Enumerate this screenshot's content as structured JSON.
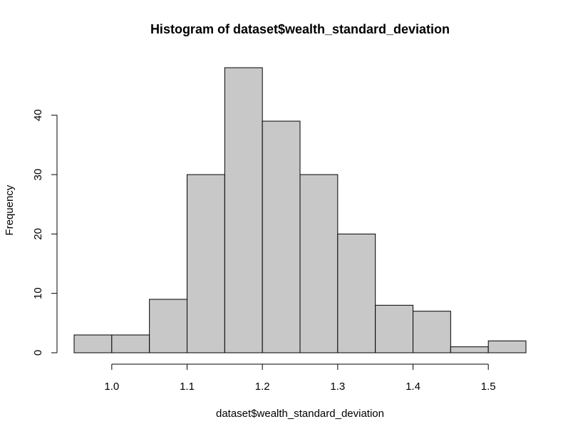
{
  "chart_data": {
    "type": "bar",
    "title": "Histogram of dataset$wealth_standard_deviation",
    "xlabel": "dataset$wealth_standard_deviation",
    "ylabel": "Frequency",
    "bins": [
      {
        "x0": 0.95,
        "x1": 1.0,
        "count": 3
      },
      {
        "x0": 1.0,
        "x1": 1.05,
        "count": 3
      },
      {
        "x0": 1.05,
        "x1": 1.1,
        "count": 9
      },
      {
        "x0": 1.1,
        "x1": 1.15,
        "count": 30
      },
      {
        "x0": 1.15,
        "x1": 1.2,
        "count": 48
      },
      {
        "x0": 1.2,
        "x1": 1.25,
        "count": 39
      },
      {
        "x0": 1.25,
        "x1": 1.3,
        "count": 30
      },
      {
        "x0": 1.3,
        "x1": 1.35,
        "count": 20
      },
      {
        "x0": 1.35,
        "x1": 1.4,
        "count": 8
      },
      {
        "x0": 1.4,
        "x1": 1.45,
        "count": 7
      },
      {
        "x0": 1.45,
        "x1": 1.5,
        "count": 1
      },
      {
        "x0": 1.5,
        "x1": 1.55,
        "count": 2
      }
    ],
    "xticks": [
      1.0,
      1.1,
      1.2,
      1.3,
      1.4,
      1.5
    ],
    "xtick_labels": [
      "1.0",
      "1.1",
      "1.2",
      "1.3",
      "1.4",
      "1.5"
    ],
    "yticks": [
      0,
      10,
      20,
      30,
      40
    ],
    "ytick_labels": [
      "0",
      "10",
      "20",
      "30",
      "40"
    ],
    "xlim": [
      0.95,
      1.55
    ],
    "ylim": [
      0,
      48
    ],
    "grid": false,
    "bar_color": "#c8c8c8",
    "edge_color": "#000000"
  }
}
